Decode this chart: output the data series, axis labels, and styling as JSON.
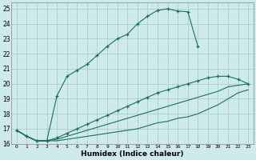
{
  "xlabel": "Humidex (Indice chaleur)",
  "bg_color": "#ceeaea",
  "grid_color": "#aacece",
  "line_color": "#1a7060",
  "xlim": [
    -0.5,
    23.5
  ],
  "ylim": [
    16,
    25.4
  ],
  "yticks": [
    16,
    17,
    18,
    19,
    20,
    21,
    22,
    23,
    24,
    25
  ],
  "xticks": [
    0,
    1,
    2,
    3,
    4,
    5,
    6,
    7,
    8,
    9,
    10,
    11,
    12,
    13,
    14,
    15,
    16,
    17,
    18,
    19,
    20,
    21,
    22,
    23
  ],
  "line1_x": [
    0,
    1,
    2,
    3,
    4,
    5,
    6,
    7,
    8,
    9,
    10,
    11,
    12,
    13,
    14,
    15,
    16,
    17,
    18
  ],
  "line1_y": [
    16.9,
    16.5,
    16.2,
    16.2,
    19.2,
    20.5,
    20.9,
    21.3,
    21.9,
    22.5,
    23.0,
    23.3,
    24.0,
    24.5,
    24.9,
    25.0,
    24.85,
    24.8,
    22.5
  ],
  "line2_x": [
    0,
    1,
    2,
    3,
    4,
    5,
    6,
    7,
    8,
    9,
    10,
    11,
    12,
    13,
    14,
    15,
    16,
    17,
    18,
    19,
    20,
    21,
    22,
    23
  ],
  "line2_y": [
    16.9,
    16.5,
    16.2,
    16.2,
    16.4,
    16.7,
    17.0,
    17.3,
    17.6,
    17.9,
    18.2,
    18.5,
    18.8,
    19.1,
    19.4,
    19.6,
    19.8,
    20.0,
    20.2,
    20.4,
    20.5,
    20.5,
    20.3,
    20.0
  ],
  "line3_x": [
    0,
    1,
    2,
    3,
    4,
    5,
    6,
    7,
    8,
    9,
    10,
    11,
    12,
    13,
    14,
    15,
    16,
    17,
    18,
    19,
    20,
    21,
    22,
    23
  ],
  "line3_y": [
    16.9,
    16.5,
    16.2,
    16.2,
    16.3,
    16.5,
    16.7,
    16.9,
    17.1,
    17.3,
    17.5,
    17.7,
    17.9,
    18.1,
    18.3,
    18.5,
    18.7,
    18.9,
    19.1,
    19.3,
    19.5,
    19.8,
    19.9,
    20.0
  ],
  "line4_x": [
    0,
    1,
    2,
    3,
    4,
    5,
    6,
    7,
    8,
    9,
    10,
    11,
    12,
    13,
    14,
    15,
    16,
    17,
    18,
    19,
    20,
    21,
    22,
    23
  ],
  "line4_y": [
    16.9,
    16.5,
    16.2,
    16.2,
    16.2,
    16.3,
    16.4,
    16.5,
    16.6,
    16.7,
    16.8,
    16.9,
    17.0,
    17.2,
    17.4,
    17.5,
    17.7,
    17.8,
    18.0,
    18.3,
    18.6,
    19.0,
    19.4,
    19.6
  ]
}
